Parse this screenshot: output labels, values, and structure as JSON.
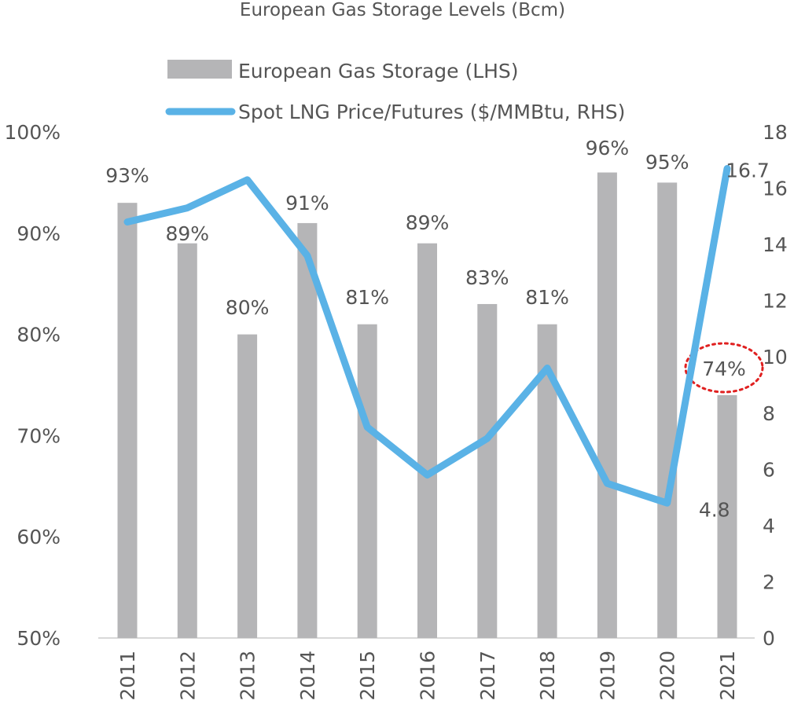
{
  "chart_data": {
    "type": "bar",
    "title": "European Gas Storage Levels (Bcm)",
    "categories": [
      "2011",
      "2012",
      "2013",
      "2014",
      "2015",
      "2016",
      "2017",
      "2018",
      "2019",
      "2020",
      "2021"
    ],
    "series": [
      {
        "name": "European Gas Storage (LHS)",
        "type": "bar",
        "axis": "left",
        "values": [
          93,
          89,
          80,
          91,
          81,
          89,
          83,
          81,
          96,
          95,
          74
        ],
        "labels": [
          "93%",
          "89%",
          "80%",
          "91%",
          "81%",
          "89%",
          "83%",
          "81%",
          "96%",
          "95%",
          "74%"
        ],
        "color": "#b5b5b7"
      },
      {
        "name": "Spot LNG Price/Futures ($/MMBtu, RHS)",
        "type": "line",
        "axis": "right",
        "values": [
          14.8,
          15.3,
          16.3,
          13.6,
          7.5,
          5.8,
          7.1,
          9.6,
          5.5,
          4.8,
          16.7
        ],
        "labels": [
          "",
          "",
          "",
          "",
          "",
          "",
          "",
          "",
          "",
          "4.8",
          "16.7"
        ],
        "color": "#5ab2e6"
      }
    ],
    "y_left": {
      "min": 50,
      "max": 100,
      "ticks": [
        "50%",
        "60%",
        "70%",
        "80%",
        "90%",
        "100%"
      ]
    },
    "y_right": {
      "min": 0,
      "max": 18,
      "ticks": [
        "0",
        "2",
        "4",
        "6",
        "8",
        "10",
        "12",
        "14",
        "16",
        "18"
      ]
    },
    "legend_position": "top-center",
    "grid": false,
    "highlight": {
      "category": "2021",
      "label": "74%",
      "style": "dotted-ellipse",
      "color": "#e02020"
    }
  }
}
